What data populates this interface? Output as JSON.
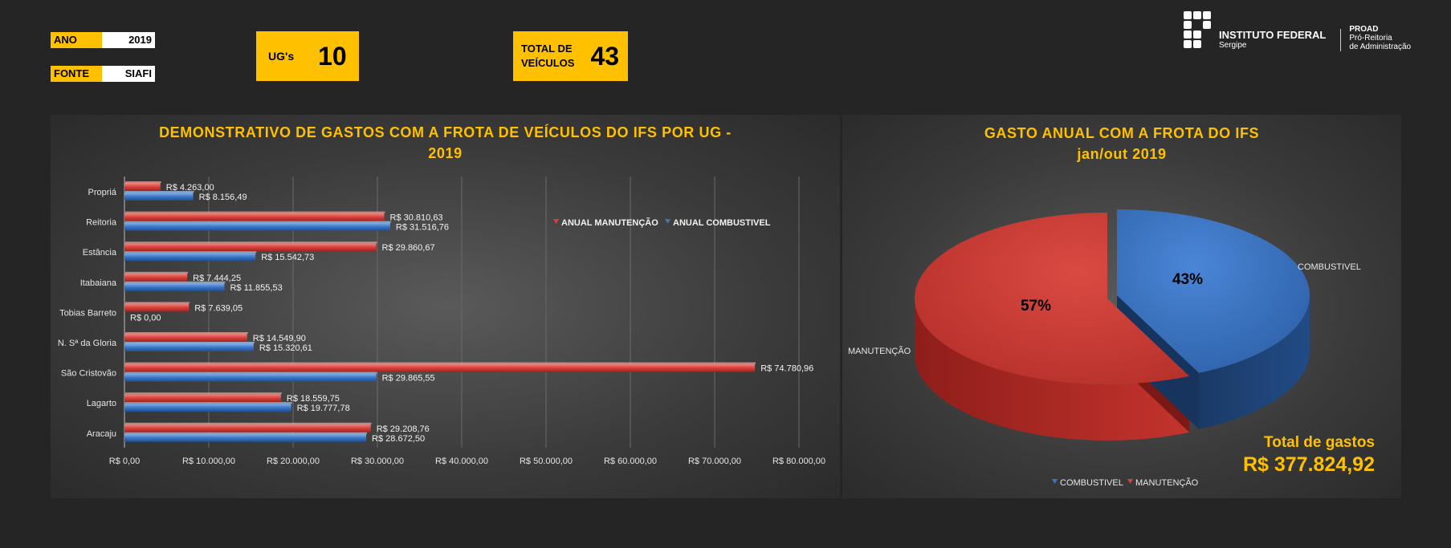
{
  "header": {
    "ano_label": "ANO",
    "ano_value": "2019",
    "fonte_label": "FONTE",
    "fonte_value": "SIAFI",
    "ugs_label": "UG's",
    "ugs_value": "10",
    "veiculos_label_1": "TOTAL DE",
    "veiculos_label_2": "VEÍCULOS",
    "veiculos_value": "43"
  },
  "logo": {
    "org": "INSTITUTO FEDERAL",
    "org_sub": "Sergipe",
    "dept": "PROAD",
    "dept_sub_1": "Pró-Reitoria",
    "dept_sub_2": "de Administração"
  },
  "colors": {
    "accent": "#FFC000",
    "manutencao": "#D9403A",
    "combustivel": "#3B76C6"
  },
  "chart_data": [
    {
      "type": "bar",
      "orientation": "horizontal",
      "title_line1": "DEMONSTRATIVO DE GASTOS COM A FROTA DE VEÍCULOS DO IFS POR UG -",
      "title_line2": "2019",
      "categories": [
        "Propriá",
        "Reitoria",
        "Estância",
        "Itabaiana",
        "Tobias Barreto",
        "N. Sª da Gloria",
        "São Cristovão",
        "Lagarto",
        "Aracaju"
      ],
      "series": [
        {
          "name": "ANUAL MANUTENÇÃO",
          "values": [
            4263.0,
            30810.63,
            29860.67,
            7444.25,
            7639.05,
            14549.9,
            74780.96,
            18559.75,
            29208.76
          ],
          "labels": [
            "R$ 4.263,00",
            "R$ 30.810,63",
            "R$ 29.860,67",
            "R$ 7.444,25",
            "R$ 7.639,05",
            "R$ 14.549,90",
            "R$ 74.780,96",
            "R$ 18.559,75",
            "R$ 29.208,76"
          ]
        },
        {
          "name": "ANUAL COMBUSTIVEL",
          "values": [
            8156.49,
            31516.76,
            15542.73,
            11855.53,
            0.0,
            15320.61,
            29865.55,
            19777.78,
            28672.5
          ],
          "labels": [
            "R$ 8.156,49",
            "R$ 31.516,76",
            "R$ 15.542,73",
            "R$ 11.855,53",
            "R$ 0,00",
            "R$ 15.320,61",
            "R$ 29.865,55",
            "R$ 19.777,78",
            "R$ 28.672,50"
          ]
        }
      ],
      "xlim": [
        0,
        80000
      ],
      "x_ticks": [
        "R$ 0,00",
        "R$ 10.000,00",
        "R$ 20.000,00",
        "R$ 30.000,00",
        "R$ 40.000,00",
        "R$ 50.000,00",
        "R$ 60.000,00",
        "R$ 70.000,00",
        "R$ 80.000,00"
      ],
      "grid": true,
      "legend": "top-right"
    },
    {
      "type": "pie",
      "title_line1": "GASTO ANUAL COM A FROTA DO IFS",
      "title_line2": "jan/out 2019",
      "slices": [
        {
          "name": "COMBUSTIVEL",
          "value": 43,
          "label": "43%"
        },
        {
          "name": "MANUTENÇÃO",
          "value": 57,
          "label": "57%"
        }
      ],
      "legend": "bottom",
      "total_label": "Total de gastos",
      "total_value": "R$ 377.824,92"
    }
  ]
}
